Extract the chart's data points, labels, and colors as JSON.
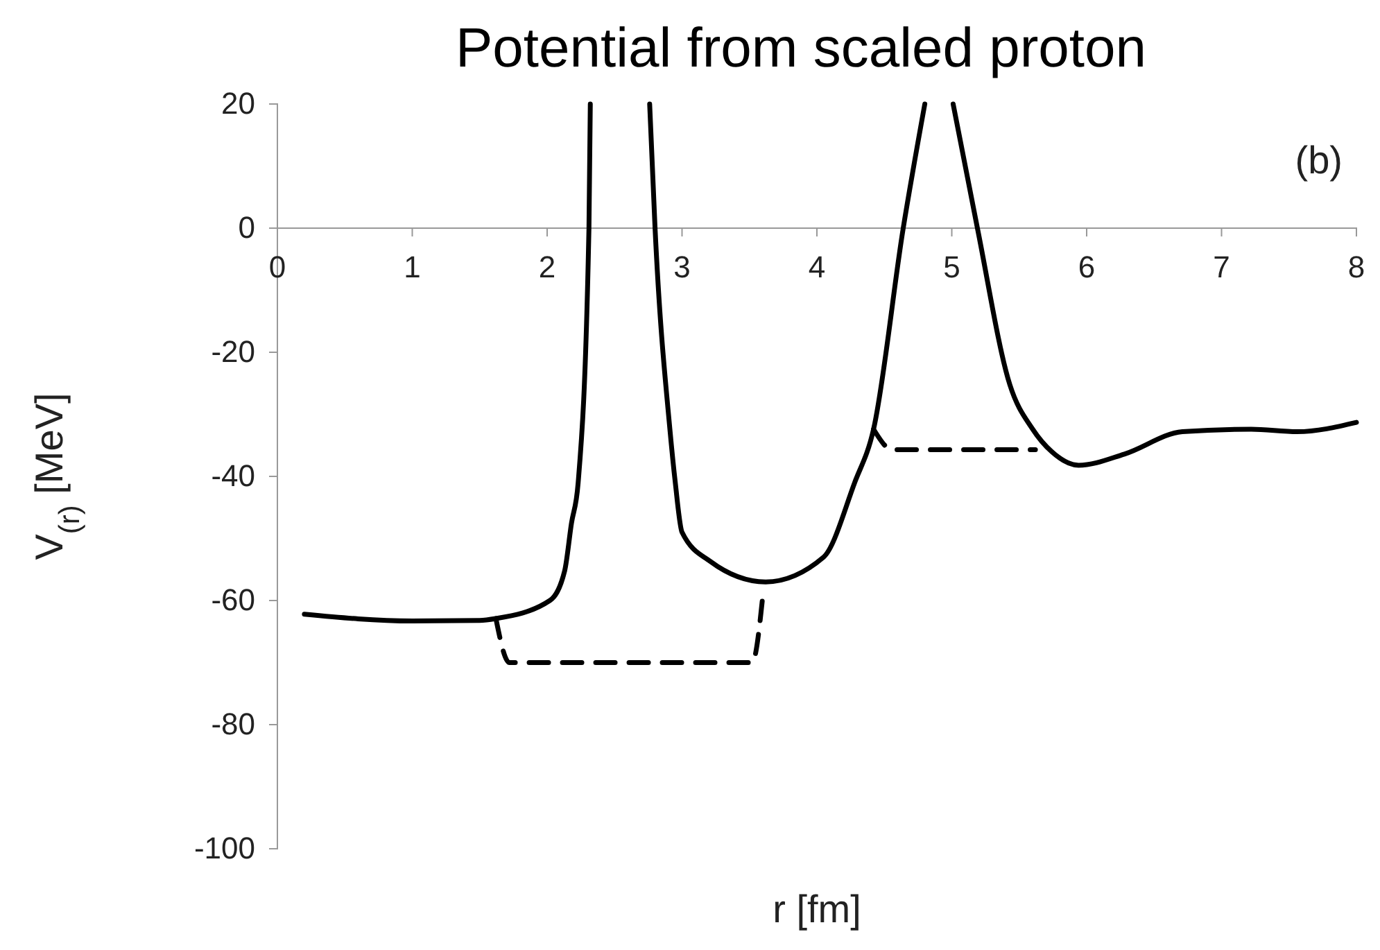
{
  "chart_data": {
    "type": "line",
    "title": "Potential from scaled proton",
    "xlabel": "r [fm]",
    "ylabel": "V$_{(r)}$ [MeV]",
    "annotations": [
      "(b)"
    ],
    "xlim": [
      0,
      8
    ],
    "xticks": [
      0,
      1,
      2,
      3,
      4,
      5,
      6,
      7,
      8
    ],
    "ylim": [
      -100,
      20
    ],
    "yticks": [
      -100,
      -80,
      -60,
      -40,
      -20,
      0,
      20
    ],
    "grid": false,
    "series": [
      {
        "color": "#000000",
        "line_style": "solid",
        "x": [
          0.2,
          1.0,
          1.5,
          1.62,
          2.02,
          2.13,
          2.18,
          2.23,
          2.31,
          2.32,
          2.54,
          2.76,
          2.8,
          2.91,
          2.95,
          3.0,
          3.21,
          3.62,
          4.05,
          4.28,
          4.42,
          4.64,
          4.8,
          4.9,
          5.01,
          5.19,
          5.43,
          5.6,
          5.74,
          5.94,
          6.28,
          6.71,
          7.22,
          7.56,
          8.0
        ],
        "values": [
          -62.2,
          -63.3,
          -63.2,
          -62.9,
          -60,
          -55.2,
          -47.6,
          -41,
          0,
          20,
          null,
          20,
          0,
          -32.4,
          -41,
          -49,
          -53.7,
          -57,
          -53,
          -41,
          -32.4,
          0,
          20,
          null,
          20,
          0,
          -25.2,
          -32.4,
          -36,
          -38.2,
          -36.4,
          -32.8,
          -32.4,
          -32.8,
          -31.3
        ]
      },
      {
        "color": "#000000",
        "line_style": "dashed",
        "x": [
          1.62,
          1.72,
          3.52,
          3.6,
          4.0,
          4.42,
          4.56,
          5.62
        ],
        "values": [
          -62.9,
          -70,
          -70,
          -59,
          null,
          -32.4,
          -35.7,
          -35.7
        ]
      }
    ]
  }
}
